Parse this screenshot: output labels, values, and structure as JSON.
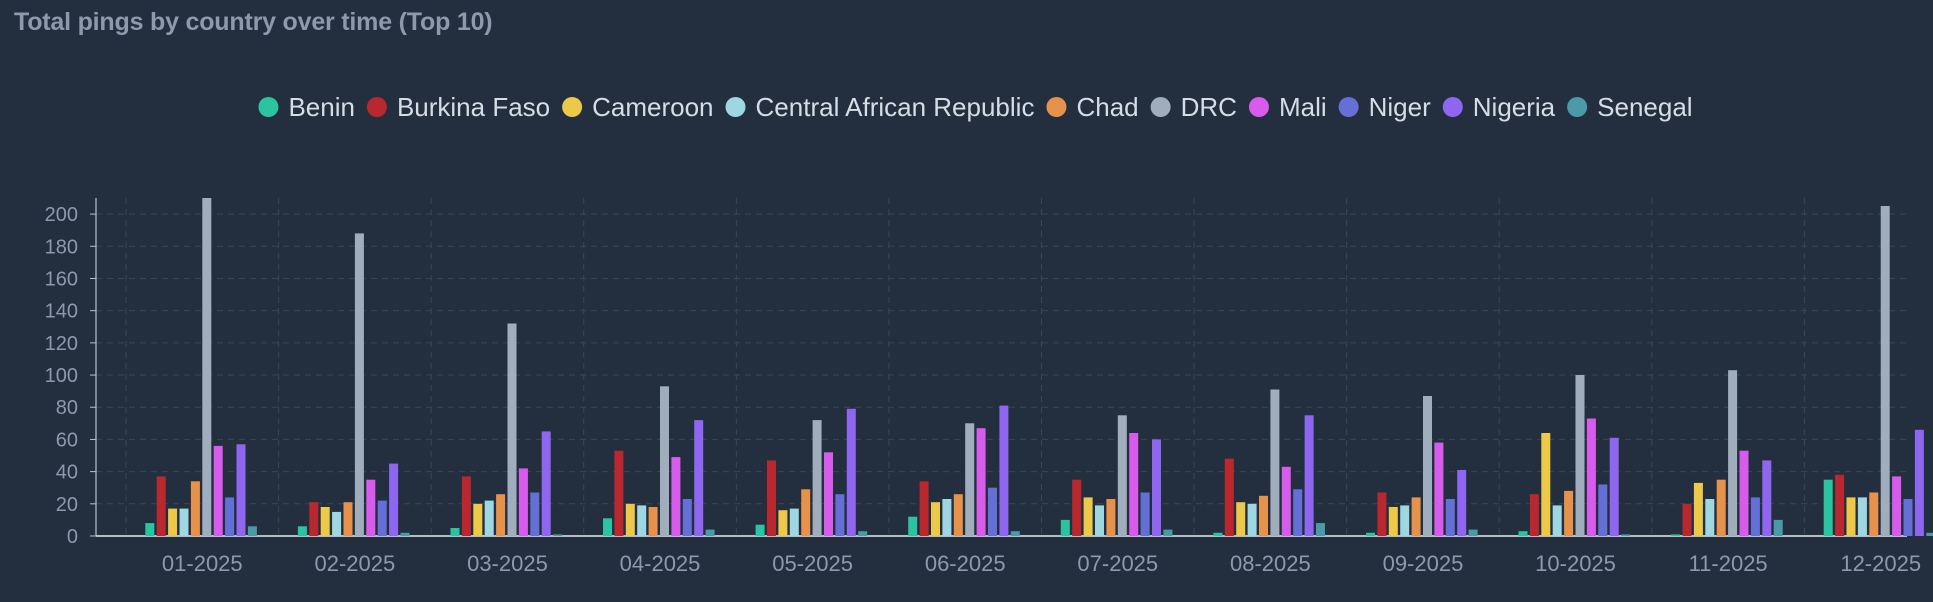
{
  "chart_data": {
    "type": "bar",
    "title": "Total pings by country over time (Top 10)",
    "xlabel": "",
    "ylabel": "",
    "ylim": [
      0,
      210
    ],
    "yticks": [
      0,
      20,
      40,
      60,
      80,
      100,
      120,
      140,
      160,
      180,
      200
    ],
    "grid": true,
    "legend_position": "top",
    "categories": [
      "01-2025",
      "02-2025",
      "03-2025",
      "04-2025",
      "05-2025",
      "06-2025",
      "07-2025",
      "08-2025",
      "09-2025",
      "10-2025",
      "11-2025",
      "12-2025"
    ],
    "series": [
      {
        "name": "Benin",
        "color": "#2bc4a0",
        "values": [
          8,
          6,
          5,
          11,
          7,
          12,
          10,
          2,
          2,
          3,
          1,
          35
        ]
      },
      {
        "name": "Burkina Faso",
        "color": "#b8282e",
        "values": [
          37,
          21,
          37,
          53,
          47,
          34,
          35,
          48,
          27,
          26,
          20,
          38
        ]
      },
      {
        "name": "Cameroon",
        "color": "#edc94a",
        "values": [
          17,
          18,
          20,
          20,
          16,
          21,
          24,
          21,
          18,
          64,
          33,
          24
        ]
      },
      {
        "name": "Central African Republic",
        "color": "#9ed7e1",
        "values": [
          17,
          15,
          22,
          19,
          17,
          23,
          19,
          20,
          19,
          19,
          23,
          24
        ]
      },
      {
        "name": "Chad",
        "color": "#e6924a",
        "values": [
          34,
          21,
          26,
          18,
          29,
          26,
          23,
          25,
          24,
          28,
          35,
          27
        ]
      },
      {
        "name": "DRC",
        "color": "#9fadbd",
        "values": [
          210,
          188,
          132,
          93,
          72,
          70,
          75,
          91,
          87,
          100,
          103,
          205
        ]
      },
      {
        "name": "Mali",
        "color": "#d75ceb",
        "values": [
          56,
          35,
          42,
          49,
          52,
          67,
          64,
          43,
          58,
          73,
          53,
          37
        ]
      },
      {
        "name": "Niger",
        "color": "#6470d6",
        "values": [
          24,
          22,
          27,
          23,
          26,
          30,
          27,
          29,
          23,
          32,
          24,
          23
        ]
      },
      {
        "name": "Nigeria",
        "color": "#8e66f0",
        "values": [
          57,
          45,
          65,
          72,
          79,
          81,
          60,
          75,
          41,
          61,
          47,
          66
        ]
      },
      {
        "name": "Senegal",
        "color": "#4a9aa8",
        "values": [
          6,
          2,
          1,
          4,
          3,
          3,
          4,
          8,
          4,
          1,
          10,
          2
        ]
      }
    ]
  }
}
